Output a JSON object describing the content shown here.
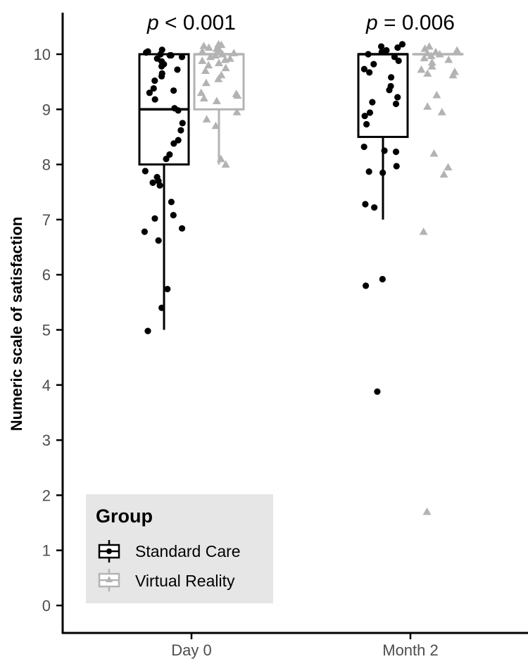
{
  "chart_data": {
    "type": "box",
    "xlabel": "",
    "ylabel": "Numeric scale of satisfaction",
    "ylim": [
      0,
      10
    ],
    "yticks": [
      "0",
      "1",
      "2",
      "3",
      "4",
      "5",
      "6",
      "7",
      "8",
      "9",
      "10"
    ],
    "categories": [
      "Day 0",
      "Month 2"
    ],
    "annotations": [
      {
        "category": "Day 0",
        "p_italic": "p",
        "text": " < 0.001"
      },
      {
        "category": "Month 2",
        "p_italic": "p",
        "text": " = 0.006"
      }
    ],
    "legend": {
      "title": "Group",
      "placement": "bottom-left"
    },
    "series": [
      {
        "name": "Standard Care",
        "color": "#000000",
        "marker": "circle",
        "boxes": [
          {
            "category": "Day 0",
            "min": 5,
            "q1": 8,
            "median": 9,
            "q3": 10,
            "max": 10
          },
          {
            "category": "Month 2",
            "min": 7,
            "q1": 8.5,
            "median": 10,
            "q3": 10,
            "max": 10
          }
        ],
        "points": [
          {
            "category": "Day 0",
            "values": [
              10.08,
              10.05,
              10.03,
              10.0,
              9.98,
              9.98,
              9.95,
              9.92,
              9.87,
              9.82,
              9.78,
              9.72,
              9.65,
              9.6,
              9.52,
              9.38,
              9.34,
              9.3,
              9.18,
              9.02,
              8.98,
              8.75,
              8.62,
              8.44,
              8.38,
              8.18,
              8.1,
              7.88,
              7.77,
              7.7,
              7.67,
              7.62,
              7.32,
              7.08,
              7.02,
              6.84,
              6.78,
              6.62,
              5.74,
              5.4,
              4.98
            ]
          },
          {
            "category": "Month 2",
            "values": [
              10.18,
              10.14,
              10.12,
              10.07,
              10.04,
              10.0,
              9.95,
              9.88,
              9.82,
              9.73,
              9.67,
              9.58,
              9.42,
              9.35,
              9.22,
              9.13,
              9.1,
              8.94,
              8.88,
              8.73,
              8.32,
              8.25,
              8.23,
              7.97,
              7.87,
              7.85,
              7.28,
              7.22,
              5.92,
              5.8,
              3.88
            ]
          }
        ]
      },
      {
        "name": "Virtual Reality",
        "color": "#b3b3b3",
        "marker": "triangle",
        "boxes": [
          {
            "category": "Day 0",
            "min": 8,
            "q1": 9,
            "median": 10,
            "q3": 10,
            "max": 10
          },
          {
            "category": "Month 2",
            "min": 10,
            "q1": 10,
            "median": 10,
            "q3": 10,
            "max": 10
          }
        ],
        "points": [
          {
            "category": "Day 0",
            "values": [
              10.18,
              10.17,
              10.15,
              10.12,
              10.1,
              10.08,
              10.05,
              10.02,
              10.0,
              9.98,
              9.95,
              9.92,
              9.9,
              9.88,
              9.84,
              9.8,
              9.75,
              9.7,
              9.62,
              9.55,
              9.48,
              9.3,
              9.28,
              9.25,
              9.2,
              9.15,
              8.95,
              8.82,
              8.7,
              8.1,
              8.0
            ]
          },
          {
            "category": "Month 2",
            "values": [
              10.14,
              10.1,
              10.07,
              10.04,
              10.02,
              10.0,
              9.97,
              9.93,
              9.9,
              9.85,
              9.78,
              9.72,
              9.68,
              9.65,
              9.62,
              9.26,
              9.05,
              8.95,
              8.2,
              7.95,
              7.82,
              6.78,
              1.7
            ]
          }
        ]
      }
    ]
  }
}
